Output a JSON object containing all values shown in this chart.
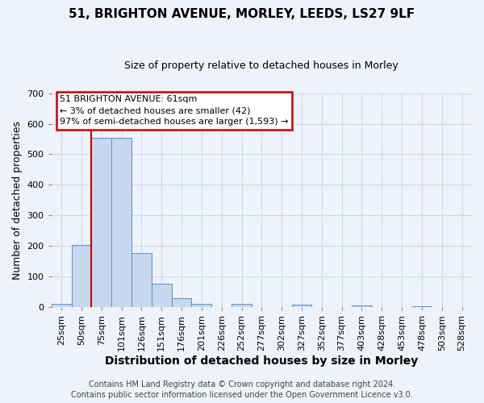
{
  "title": "51, BRIGHTON AVENUE, MORLEY, LEEDS, LS27 9LF",
  "subtitle": "Size of property relative to detached houses in Morley",
  "xlabel": "Distribution of detached houses by size in Morley",
  "ylabel": "Number of detached properties",
  "bar_labels": [
    "25sqm",
    "50sqm",
    "75sqm",
    "101sqm",
    "126sqm",
    "151sqm",
    "176sqm",
    "201sqm",
    "226sqm",
    "252sqm",
    "277sqm",
    "302sqm",
    "327sqm",
    "352sqm",
    "377sqm",
    "403sqm",
    "428sqm",
    "453sqm",
    "478sqm",
    "503sqm",
    "528sqm"
  ],
  "bar_values": [
    12,
    204,
    553,
    555,
    178,
    78,
    30,
    12,
    0,
    10,
    0,
    0,
    8,
    0,
    0,
    5,
    0,
    0,
    4,
    0,
    0
  ],
  "bar_color": "#c5d8ee",
  "bar_edge_color": "#5b8dc8",
  "vline_bin_index": 1.48,
  "vline_color": "#cc0000",
  "annotation_text": "51 BRIGHTON AVENUE: 61sqm\n← 3% of detached houses are smaller (42)\n97% of semi-detached houses are larger (1,593) →",
  "annotation_box_color": "#ffffff",
  "annotation_box_edge": "#cc0000",
  "ylim": [
    0,
    700
  ],
  "yticks": [
    0,
    100,
    200,
    300,
    400,
    500,
    600,
    700
  ],
  "grid_color": "#c8d8ec",
  "background_color": "#eef2fa",
  "footer": "Contains HM Land Registry data © Crown copyright and database right 2024.\nContains public sector information licensed under the Open Government Licence v3.0.",
  "title_fontsize": 11,
  "subtitle_fontsize": 9,
  "xlabel_fontsize": 10,
  "ylabel_fontsize": 9,
  "tick_fontsize": 8,
  "annotation_fontsize": 8,
  "footer_fontsize": 7
}
